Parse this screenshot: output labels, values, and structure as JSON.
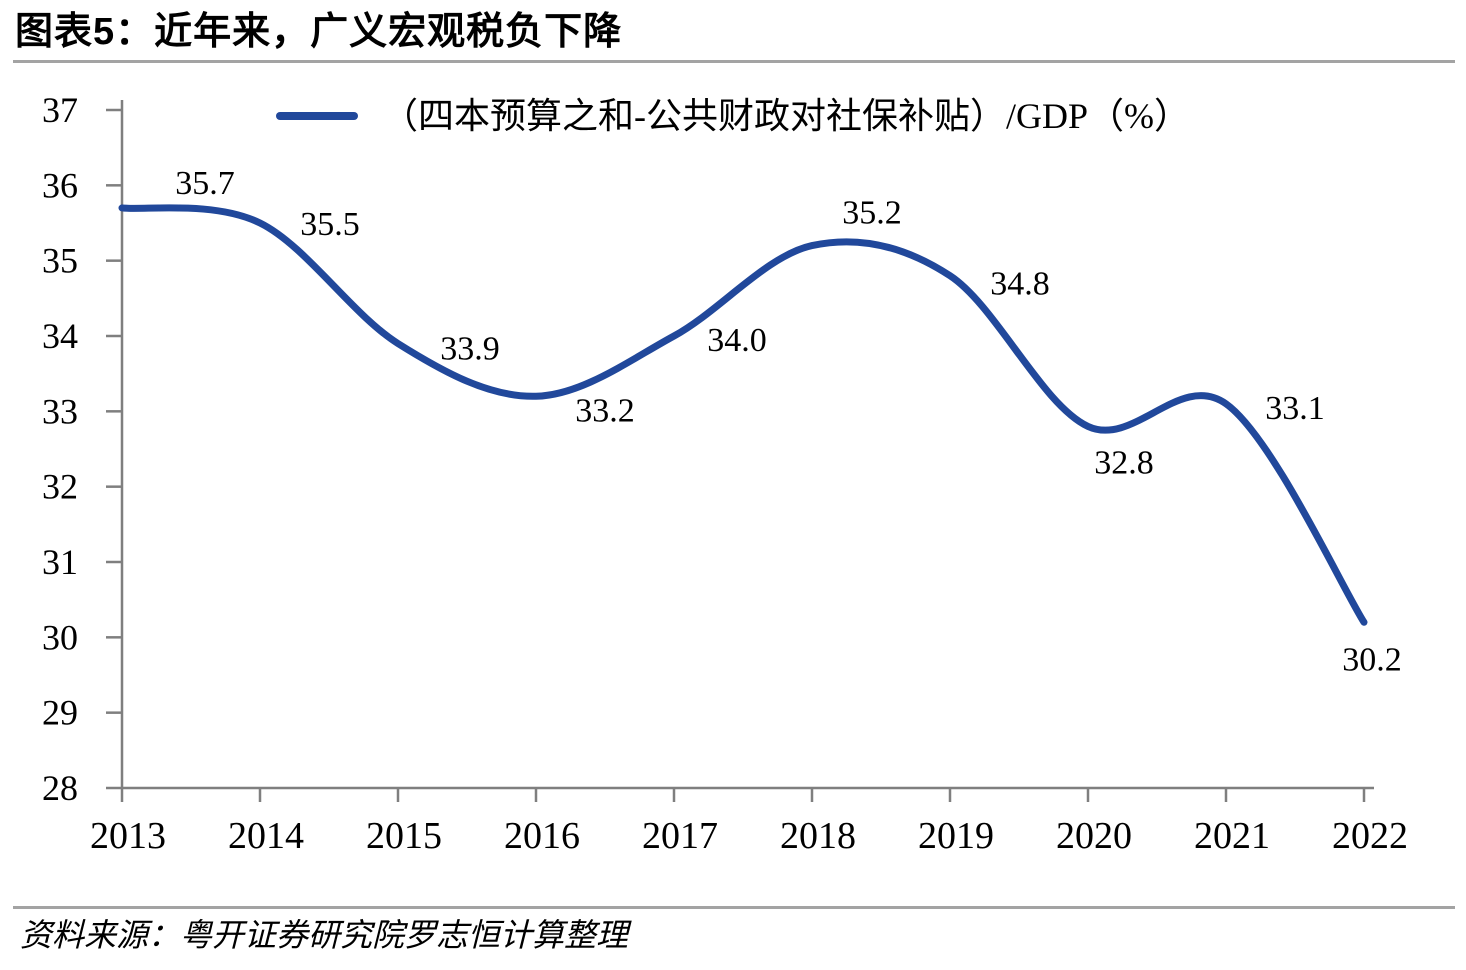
{
  "figure": {
    "title": "图表5：近年来，广义宏观税负下降",
    "source": "资料来源：粤开证券研究院罗志恒计算整理"
  },
  "chart_data": {
    "type": "line",
    "title": "图表5：近年来，广义宏观税负下降",
    "legend": "（四本预算之和-公共财政对社保补贴）/GDP（%）",
    "categories": [
      "2013",
      "2014",
      "2015",
      "2016",
      "2017",
      "2018",
      "2019",
      "2020",
      "2021",
      "2022"
    ],
    "series": [
      {
        "name": "（四本预算之和-公共财政对社保补贴）/GDP（%）",
        "values": [
          35.7,
          35.5,
          33.9,
          33.2,
          34.0,
          35.2,
          34.8,
          32.8,
          33.1,
          30.2
        ]
      }
    ],
    "data_labels": [
      "35.7",
      "35.5",
      "33.9",
      "33.2",
      "34.0",
      "35.2",
      "34.8",
      "32.8",
      "33.1",
      "30.2"
    ],
    "xlabel": "",
    "ylabel": "",
    "ylim": [
      28,
      37
    ],
    "yticks": [
      37,
      36,
      35,
      34,
      33,
      32,
      31,
      30,
      29,
      28
    ],
    "grid": false,
    "smooth": true,
    "legend_position": "top-center",
    "line_color": "#21489B",
    "axis_color": "#7F7F7F",
    "divider_color": "#A3A3A3",
    "text_color": "#000000"
  }
}
